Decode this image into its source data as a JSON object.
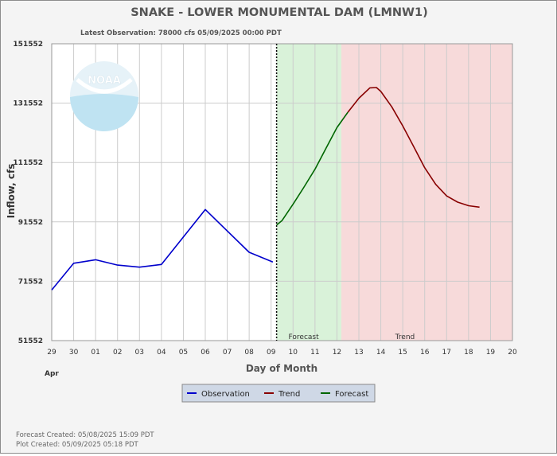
{
  "chart_data": {
    "type": "line",
    "title": "SNAKE - LOWER MONUMENTAL DAM  (LMNW1)",
    "subtitle": "Latest Observation: 78000 cfs 05/09/2025 00:00 PDT",
    "xlabel": "Day of Month",
    "ylabel": "Inflow, cfs",
    "x_month_label": "Apr",
    "x_ticks": [
      "29",
      "30",
      "01",
      "02",
      "03",
      "04",
      "05",
      "06",
      "07",
      "08",
      "09",
      "10",
      "11",
      "12",
      "13",
      "14",
      "15",
      "16",
      "17",
      "18",
      "19",
      "20"
    ],
    "y_ticks": [
      51552,
      71552,
      91552,
      111552,
      131552,
      151552
    ],
    "ylim": [
      51552,
      151552
    ],
    "xlim": [
      0,
      21
    ],
    "grid": true,
    "logo_text": "NOAA",
    "regions": [
      {
        "label": "Forecast",
        "from": 10.25,
        "to": 13.2,
        "color": "#d9f2d9"
      },
      {
        "label": "Trend",
        "from": 13.2,
        "to": 21,
        "color": "#f7dada"
      }
    ],
    "now_line_x": 10.25,
    "series": [
      {
        "name": "Observation",
        "color": "#0000cc",
        "x": [
          0,
          1,
          2,
          3,
          4,
          5,
          7,
          9,
          10.08
        ],
        "y": [
          68600,
          77600,
          78800,
          77000,
          76300,
          77200,
          95700,
          81300,
          78000
        ]
      },
      {
        "name": "Forecast",
        "color": "#006600",
        "x": [
          10.25,
          10.5,
          11,
          11.5,
          12,
          12.5,
          13,
          13.5
        ],
        "y": [
          90500,
          92000,
          97500,
          103300,
          109300,
          116300,
          123300,
          128500
        ]
      },
      {
        "name": "Trend",
        "color": "#880000",
        "x": [
          13.5,
          14,
          14.5,
          14.8,
          15,
          15.5,
          16,
          16.5,
          17,
          17.5,
          18,
          18.5,
          19,
          19.5
        ],
        "y": [
          128500,
          133200,
          136700,
          136800,
          135500,
          130300,
          123900,
          116900,
          109800,
          104200,
          100300,
          98200,
          97000,
          96500
        ]
      }
    ],
    "legend": [
      "Observation",
      "Trend",
      "Forecast"
    ],
    "legend_position": "bottom-center"
  },
  "footer": {
    "forecast_created": "Forecast Created: 05/08/2025 15:09 PDT",
    "plot_created": "Plot Created: 05/09/2025 05:18 PDT"
  }
}
